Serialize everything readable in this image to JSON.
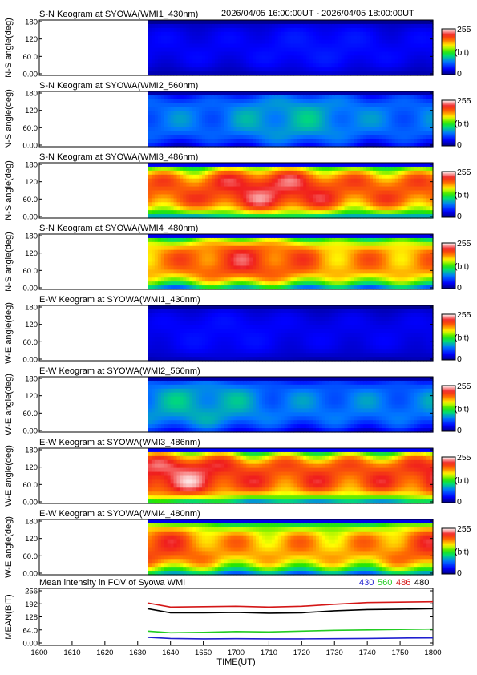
{
  "header": {
    "time_range": "2026/04/05 16:00:00UT - 2026/04/05 18:00:00UT"
  },
  "colorbar": {
    "max_label": "255",
    "unit_label": "(bit)",
    "min_label": "0"
  },
  "keogram_panels": [
    {
      "title": "S-N Keogram at SYOWA(WMI1_430nm)",
      "ylabel": "N-S angle(deg)",
      "yticks": [
        "180",
        "120",
        "60.0",
        "0.00"
      ],
      "mean": 30,
      "amp": 12
    },
    {
      "title": "S-N Keogram at SYOWA(WMI2_560nm)",
      "ylabel": "N-S angle(deg)",
      "yticks": [
        "180",
        "120",
        "60.0",
        "0.00"
      ],
      "mean": 70,
      "amp": 30
    },
    {
      "title": "S-N Keogram at SYOWA(WMI3_486nm)",
      "ylabel": "N-S angle(deg)",
      "yticks": [
        "180",
        "120",
        "60.0",
        "0.00"
      ],
      "mean": 200,
      "amp": 45
    },
    {
      "title": "S-N Keogram at SYOWA(WMI4_480nm)",
      "ylabel": "N-S angle(deg)",
      "yticks": [
        "180",
        "120",
        "60.0",
        "0.00"
      ],
      "mean": 185,
      "amp": 45
    },
    {
      "title": "E-W Keogram at SYOWA(WMI1_430nm)",
      "ylabel": "W-E angle(deg)",
      "yticks": [
        "180",
        "120",
        "60.0",
        "0.00"
      ],
      "mean": 28,
      "amp": 10
    },
    {
      "title": "E-W Keogram at SYOWA(WMI2_560nm)",
      "ylabel": "W-E angle(deg)",
      "yticks": [
        "180",
        "120",
        "60.0",
        "0.00"
      ],
      "mean": 72,
      "amp": 30
    },
    {
      "title": "E-W Keogram at SYOWA(WMI3_486nm)",
      "ylabel": "W-E angle(deg)",
      "yticks": [
        "180",
        "120",
        "60.0",
        "0.00"
      ],
      "mean": 205,
      "amp": 45
    },
    {
      "title": "E-W Keogram at SYOWA(WMI4_480nm)",
      "ylabel": "W-E angle(deg)",
      "yticks": [
        "180",
        "120",
        "60.0",
        "0.00"
      ],
      "mean": 180,
      "amp": 45
    }
  ],
  "chart_data": {
    "type": "line",
    "title": "Mean intensity in FOV of Syowa WMI",
    "xlabel": "TIME(UT)",
    "ylabel": "MEAN(BIT)",
    "x_ticks": [
      "1600",
      "1610",
      "1620",
      "1630",
      "1640",
      "1650",
      "1700",
      "1710",
      "1720",
      "1730",
      "1740",
      "1750",
      "1800"
    ],
    "y_ticks": [
      "256",
      "192",
      "128",
      "64.0",
      "0.00"
    ],
    "ylim": [
      0,
      256
    ],
    "data_start": "1633",
    "x": [
      "1633",
      "1640",
      "1650",
      "1700",
      "1710",
      "1720",
      "1730",
      "1740",
      "1750",
      "1800"
    ],
    "series": [
      {
        "name": "430",
        "color": "#1f1fcf",
        "values": [
          28,
          22,
          20,
          21,
          20,
          20,
          21,
          22,
          24,
          25
        ]
      },
      {
        "name": "560",
        "color": "#22cc22",
        "values": [
          58,
          50,
          52,
          56,
          54,
          58,
          62,
          64,
          66,
          68
        ]
      },
      {
        "name": "486",
        "color": "#d41616",
        "values": [
          196,
          176,
          178,
          180,
          176,
          180,
          190,
          198,
          200,
          202
        ]
      },
      {
        "name": "480",
        "color": "#000000",
        "values": [
          168,
          148,
          148,
          150,
          146,
          148,
          158,
          164,
          166,
          168
        ]
      }
    ]
  }
}
